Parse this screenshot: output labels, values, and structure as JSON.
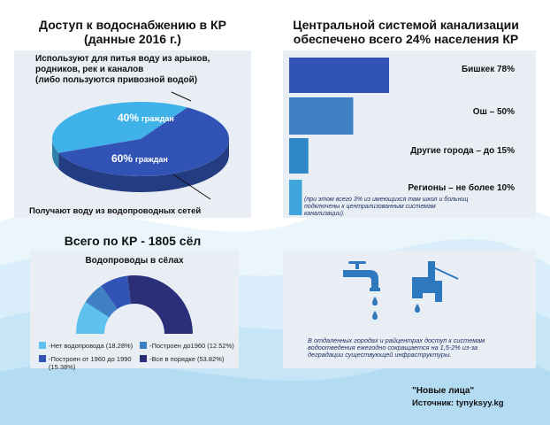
{
  "colors": {
    "dark_navy": "#2b2f78",
    "royal": "#3153b5",
    "mid_blue": "#3f7fc4",
    "sky": "#40b2ea",
    "water_drop": "#2e78c0",
    "panel_bg": "#e9eef4"
  },
  "left_top": {
    "title_line1": "Доступ к водоснабжению в КР",
    "title_line2": "(данные 2016 г.)",
    "top_note_line1": "Используют для питья воду из арыков,",
    "top_note_line2": "родников, рек и каналов",
    "top_note_line3": "(либо пользуются привозной водой)",
    "bottom_note": "Получают воду из водопроводных сетей"
  },
  "right_top": {
    "title_line1": "Центральной системой канализации",
    "title_line2": "обеспечено всего 24% населения КР",
    "footnote_line1": "(при этом всего 3% из имеющихся там школ и больниц",
    "footnote_line2": "подключены к централизованным системам",
    "footnote_line3": "канализации)."
  },
  "left_bottom": {
    "title": "Всего по КР - 1805 сёл"
  },
  "right_bottom": {
    "note_line1": "В отдаленных городах и райцентрах доступ к системам",
    "note_line2": "водоотведения ежегодно сокращается на 1,5-2% из-за",
    "note_line3": "деградации существующей инфраструктуры."
  },
  "footer": {
    "author": "\"Новые лица\"",
    "source": "Источник: tynyksyy.kg"
  },
  "icons": [
    "faucet-icon",
    "water-pipe-icon"
  ],
  "chart_data": [
    {
      "type": "pie",
      "slices": [
        {
          "label": "40% граждан",
          "value": 40,
          "color": "#40b2ea"
        },
        {
          "label": "60% граждан",
          "value": 60,
          "color": "#3153b5"
        }
      ]
    },
    {
      "type": "bar",
      "orientation": "horizontal",
      "categories": [
        "Бишкек 78%",
        "Ош – 50%",
        "Другие города – до 15%",
        "Регионы – не более 10%"
      ],
      "values": [
        78,
        50,
        15,
        10
      ],
      "colors": [
        "#3153b5",
        "#3f7fc4",
        "#2f86c8",
        "#40a4dd"
      ]
    },
    {
      "type": "pie",
      "title": "Водопроводы в сёлах",
      "half_donut": true,
      "slices": [
        {
          "label": "-Нет водопровода (18.28%)",
          "value": 18.28,
          "color": "#5fc2ee"
        },
        {
          "label": "-Построен до1960 (12.52%)",
          "value": 12.52,
          "color": "#3f7fc4"
        },
        {
          "label": "-Построен от 1960 до 1990 (15.38%)",
          "value": 15.38,
          "color": "#3153b5"
        },
        {
          "label": "-Все в порядке (53.82%)",
          "value": 53.82,
          "color": "#2b2f78"
        }
      ]
    }
  ]
}
